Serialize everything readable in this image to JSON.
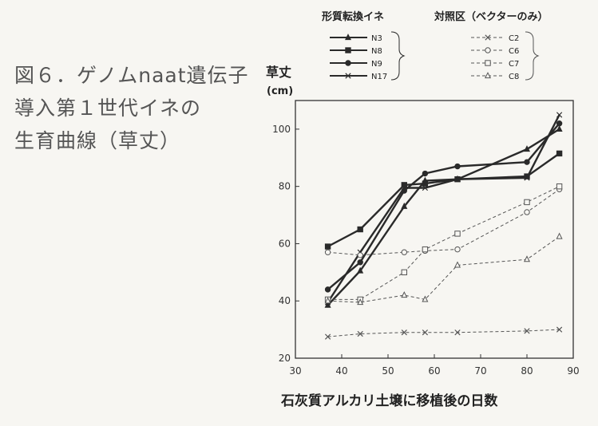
{
  "caption": {
    "line1": "図６．ゲノムnaat遺伝子",
    "line2": "導入第１世代イネの",
    "line3": "生育曲線（草丈）"
  },
  "chart_data": {
    "type": "line",
    "ylabel": "草丈",
    "yunit": "(cm)",
    "xlabel": "石灰質アルカリ土壌に移植後の日数",
    "xlim": [
      30,
      90
    ],
    "ylim": [
      20,
      110
    ],
    "xticks": [
      30,
      40,
      50,
      60,
      70,
      80,
      90
    ],
    "yticks": [
      20,
      40,
      60,
      80,
      100
    ],
    "legend": {
      "group1_title": "形質転換イネ",
      "group2_title": "対照区（ベクターのみ）"
    },
    "series": [
      {
        "name": "N3",
        "group": 1,
        "marker": "triangle-filled",
        "dash": "solid",
        "x": [
          37,
          44,
          53.5,
          58,
          65,
          80,
          87
        ],
        "y": [
          38.5,
          50.5,
          73,
          82,
          82.5,
          93,
          100
        ]
      },
      {
        "name": "N8",
        "group": 1,
        "marker": "square-filled",
        "dash": "solid",
        "x": [
          37,
          44,
          53.5,
          58,
          65,
          80,
          87
        ],
        "y": [
          59,
          65,
          80.5,
          81,
          82.5,
          83.5,
          91.5
        ]
      },
      {
        "name": "N9",
        "group": 1,
        "marker": "circle-filled",
        "dash": "solid",
        "x": [
          37,
          44,
          53.5,
          58,
          65,
          80,
          87
        ],
        "y": [
          44,
          53.5,
          78.5,
          84.5,
          87,
          88.5,
          102
        ]
      },
      {
        "name": "N17",
        "group": 1,
        "marker": "x",
        "dash": "solid",
        "x": [
          37,
          44,
          53.5,
          58,
          65,
          80,
          87
        ],
        "y": [
          39.5,
          57,
          79.5,
          79.5,
          82.5,
          83,
          105
        ]
      },
      {
        "name": "C2",
        "group": 2,
        "marker": "x",
        "dash": "dashed",
        "x": [
          37,
          44,
          53.5,
          58,
          65,
          80,
          87
        ],
        "y": [
          27.5,
          28.5,
          29,
          29,
          29,
          29.5,
          30
        ]
      },
      {
        "name": "C6",
        "group": 2,
        "marker": "circle-open",
        "dash": "dashed",
        "x": [
          37,
          44,
          53.5,
          58,
          65,
          80,
          87
        ],
        "y": [
          57,
          56,
          57,
          57.5,
          58,
          71,
          79
        ]
      },
      {
        "name": "C7",
        "group": 2,
        "marker": "square-open",
        "dash": "dashed",
        "x": [
          37,
          44,
          53.5,
          58,
          65,
          80,
          87
        ],
        "y": [
          40.5,
          40.5,
          50,
          58,
          63.5,
          74.5,
          80
        ]
      },
      {
        "name": "C8",
        "group": 2,
        "marker": "triangle-open",
        "dash": "dashed",
        "x": [
          37,
          44,
          53.5,
          58,
          65,
          80,
          87
        ],
        "y": [
          40,
          39.5,
          42,
          40.5,
          52.5,
          54.5,
          62.5
        ]
      }
    ]
  },
  "colors": {
    "solid": "#2a2a2a",
    "dashed": "#555555",
    "axis": "#333333"
  }
}
